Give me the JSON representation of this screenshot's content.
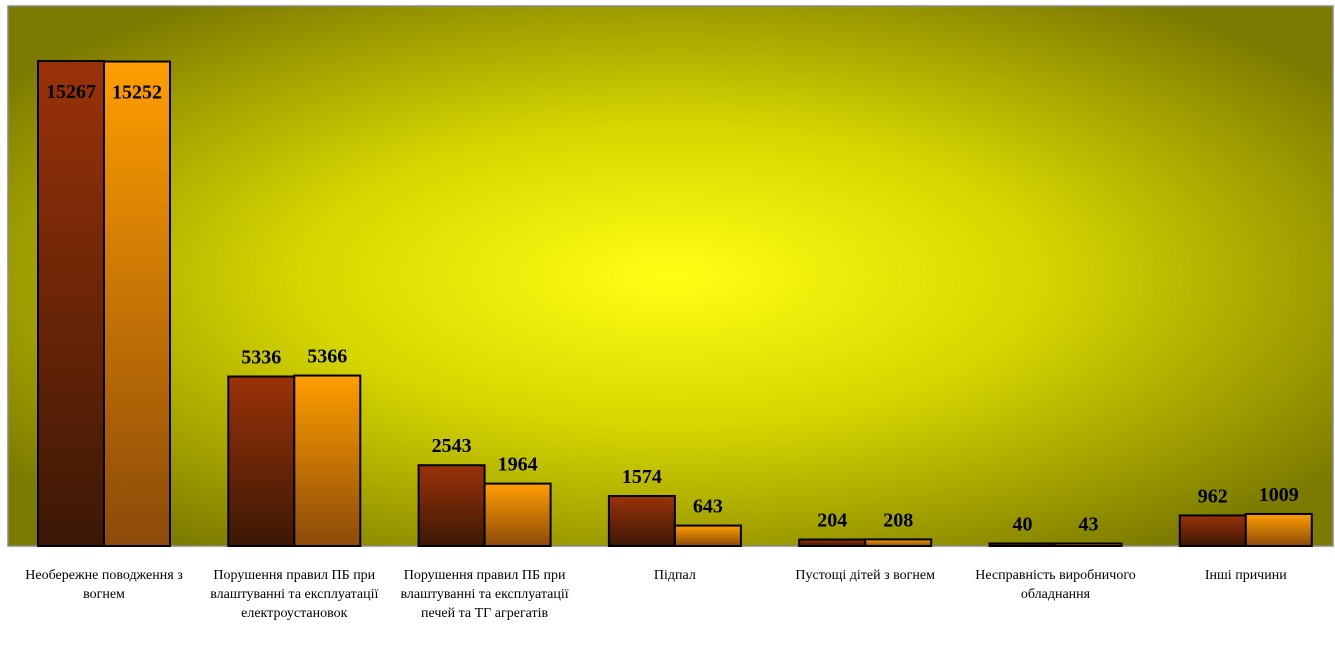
{
  "chart_data": {
    "type": "bar",
    "title": "",
    "xlabel": "",
    "ylabel": "",
    "ylim": [
      0,
      17000
    ],
    "grid": false,
    "legend": "none",
    "categories": [
      "Необережне поводження з вогнем",
      "Порушення правил ПБ при влаштуванні та експлуатації електроустановок",
      "Порушення правил ПБ при влаштуванні та експлуатації печей та ТГ агрегатів",
      "Підпал",
      "Пустощі дітей з вогнем",
      "Несправність виробничого обладнання",
      "Інші причини"
    ],
    "series": [
      {
        "values": [
          15267,
          5336,
          2543,
          1574,
          204,
          40,
          962
        ]
      },
      {
        "values": [
          15252,
          5366,
          1964,
          643,
          208,
          43,
          1009
        ]
      }
    ],
    "colors": {
      "series1_top": "#9a3208",
      "series1_bottom": "#3c1806",
      "series2_top": "#ff9e00",
      "series2_bottom": "#8c4a0a",
      "background_center": "#ffff14",
      "background_edge": "#7c7a00",
      "frame": "#8a8a8a"
    }
  }
}
